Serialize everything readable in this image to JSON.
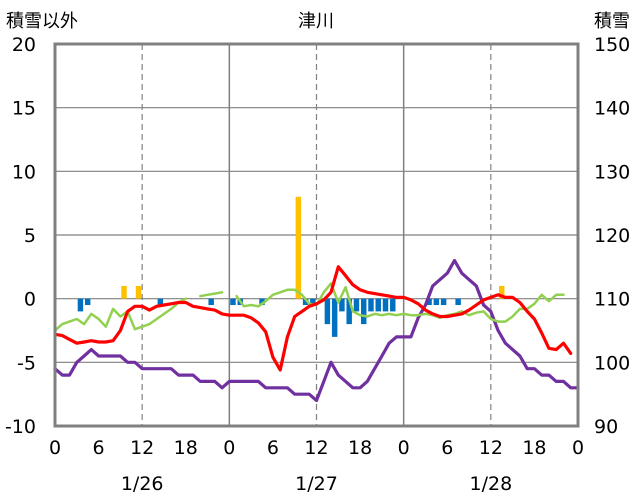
{
  "chart_data": {
    "type": "combo-bar-line",
    "title": "津川",
    "left_axis_label": "積雪以外",
    "right_axis_label": "積雪",
    "y_left": {
      "min": -10,
      "max": 20,
      "ticks": [
        20,
        15,
        10,
        5,
        0,
        -5,
        -10
      ]
    },
    "y_right": {
      "min": 90,
      "max": 150,
      "ticks": [
        150,
        140,
        130,
        120,
        110,
        100,
        90
      ]
    },
    "x": {
      "min": 0,
      "max": 72,
      "hour_ticks": [
        {
          "h": 0,
          "label": "0"
        },
        {
          "h": 6,
          "label": "6"
        },
        {
          "h": 12,
          "label": "12"
        },
        {
          "h": 18,
          "label": "18"
        },
        {
          "h": 24,
          "label": "0"
        },
        {
          "h": 30,
          "label": "6"
        },
        {
          "h": 36,
          "label": "12"
        },
        {
          "h": 42,
          "label": "18"
        },
        {
          "h": 48,
          "label": "0"
        },
        {
          "h": 54,
          "label": "6"
        },
        {
          "h": 60,
          "label": "12"
        },
        {
          "h": 66,
          "label": "18"
        },
        {
          "h": 72,
          "label": "0"
        }
      ],
      "date_labels": [
        {
          "h": 12,
          "label": "1/26"
        },
        {
          "h": 36,
          "label": "1/27"
        },
        {
          "h": 60,
          "label": "1/28"
        }
      ],
      "day_lines": [
        24,
        48
      ],
      "dashed_lines": [
        12,
        36,
        60
      ]
    },
    "colors": {
      "precipitation": "#FFC000",
      "snow_change": "#0070C0",
      "temperature": "#FF0000",
      "humidity_like": "#92D050",
      "snow_depth": "#7030A0",
      "frame": "#808080"
    },
    "series": [
      {
        "key": "precipitation",
        "axis": "left",
        "kind": "bar",
        "data": [
          [
            9,
            1
          ],
          [
            11,
            1
          ],
          [
            33,
            8
          ],
          [
            61,
            1
          ]
        ]
      },
      {
        "key": "snow_change",
        "axis": "left",
        "kind": "bar",
        "data": [
          [
            3,
            -1
          ],
          [
            4,
            -0.5
          ],
          [
            14,
            -0.5
          ],
          [
            21,
            -0.5
          ],
          [
            24,
            -0.5
          ],
          [
            25,
            -0.5
          ],
          [
            28,
            -0.5
          ],
          [
            34,
            -0.5
          ],
          [
            35,
            -0.5
          ],
          [
            37,
            -2
          ],
          [
            38,
            -3
          ],
          [
            39,
            -1
          ],
          [
            40,
            -2
          ],
          [
            41,
            -1
          ],
          [
            42,
            -2
          ],
          [
            43,
            -1
          ],
          [
            44,
            -1
          ],
          [
            45,
            -1
          ],
          [
            46,
            -1
          ],
          [
            51,
            -0.5
          ],
          [
            52,
            -0.5
          ],
          [
            53,
            -0.5
          ],
          [
            55,
            -0.5
          ]
        ]
      },
      {
        "key": "temperature",
        "axis": "left",
        "kind": "line",
        "data": [
          [
            0,
            -2.8
          ],
          [
            1,
            -2.9
          ],
          [
            2,
            -3.2
          ],
          [
            3,
            -3.5
          ],
          [
            4,
            -3.4
          ],
          [
            5,
            -3.3
          ],
          [
            6,
            -3.4
          ],
          [
            7,
            -3.4
          ],
          [
            8,
            -3.3
          ],
          [
            9,
            -2.5
          ],
          [
            10,
            -1
          ],
          [
            11,
            -0.6
          ],
          [
            12,
            -0.6
          ],
          [
            13,
            -0.9
          ],
          [
            14,
            -0.6
          ],
          [
            15,
            -0.5
          ],
          [
            16,
            -0.4
          ],
          [
            17,
            -0.3
          ],
          [
            18,
            -0.3
          ],
          [
            19,
            -0.6
          ],
          [
            20,
            -0.7
          ],
          [
            21,
            -0.8
          ],
          [
            22,
            -0.9
          ],
          [
            23,
            -1.2
          ],
          [
            24,
            -1.3
          ],
          [
            25,
            -1.3
          ],
          [
            26,
            -1.3
          ],
          [
            27,
            -1.5
          ],
          [
            28,
            -1.9
          ],
          [
            29,
            -2.6
          ],
          [
            30,
            -4.6
          ],
          [
            31,
            -5.6
          ],
          [
            32,
            -3
          ],
          [
            33,
            -1.4
          ],
          [
            34,
            -1
          ],
          [
            35,
            -0.6
          ],
          [
            36,
            -0.4
          ],
          [
            37,
            -0.1
          ],
          [
            38,
            0.5
          ],
          [
            39,
            2.5
          ],
          [
            40,
            1.8
          ],
          [
            41,
            1.1
          ],
          [
            42,
            0.7
          ],
          [
            43,
            0.5
          ],
          [
            44,
            0.4
          ],
          [
            45,
            0.3
          ],
          [
            46,
            0.2
          ],
          [
            47,
            0.1
          ],
          [
            48,
            0.1
          ],
          [
            49,
            -0.1
          ],
          [
            50,
            -0.4
          ],
          [
            51,
            -0.9
          ],
          [
            52,
            -1.2
          ],
          [
            53,
            -1.4
          ],
          [
            54,
            -1.4
          ],
          [
            55,
            -1.3
          ],
          [
            56,
            -1.2
          ],
          [
            57,
            -0.9
          ],
          [
            58,
            -0.5
          ],
          [
            59,
            -0.1
          ],
          [
            60,
            0.1
          ],
          [
            61,
            0.3
          ],
          [
            62,
            0.1
          ],
          [
            63,
            0.1
          ],
          [
            64,
            -0.3
          ],
          [
            65,
            -1
          ],
          [
            66,
            -1.6
          ],
          [
            67,
            -2.7
          ],
          [
            68,
            -3.9
          ],
          [
            69,
            -4
          ],
          [
            70,
            -3.5
          ],
          [
            71,
            -4.3
          ]
        ]
      },
      {
        "key": "humidity_like",
        "axis": "left",
        "kind": "line",
        "data": [
          [
            0,
            -2.5
          ],
          [
            1,
            -2
          ],
          [
            2,
            -1.8
          ],
          [
            3,
            -1.6
          ],
          [
            4,
            -2
          ],
          [
            5,
            -1.2
          ],
          [
            6,
            -1.6
          ],
          [
            7,
            -2.2
          ],
          [
            8,
            -0.8
          ],
          [
            9,
            -1.4
          ],
          [
            10,
            -1
          ],
          [
            11,
            -2.4
          ],
          [
            12,
            -2.2
          ],
          [
            13,
            -2
          ],
          [
            14,
            -1.6
          ],
          [
            15,
            -1.2
          ],
          [
            16,
            -0.8
          ],
          [
            17,
            -0.3
          ],
          [
            18,
            0
          ],
          [
            19,
            null
          ],
          [
            20,
            0.2
          ],
          [
            21,
            0.3
          ],
          [
            22,
            0.4
          ],
          [
            23,
            0.5
          ],
          [
            24,
            null
          ],
          [
            25,
            0.2
          ],
          [
            26,
            -0.6
          ],
          [
            27,
            -0.5
          ],
          [
            28,
            -0.6
          ],
          [
            29,
            -0.2
          ],
          [
            30,
            0.3
          ],
          [
            31,
            0.5
          ],
          [
            32,
            0.7
          ],
          [
            33,
            0.7
          ],
          [
            34,
            0.3
          ],
          [
            35,
            -0.4
          ],
          [
            36,
            -0.5
          ],
          [
            37,
            0.5
          ],
          [
            38,
            1.2
          ],
          [
            39,
            -0.3
          ],
          [
            40,
            0.9
          ],
          [
            41,
            -1
          ],
          [
            42,
            -1.3
          ],
          [
            43,
            -1.4
          ],
          [
            44,
            -1.2
          ],
          [
            45,
            -1.3
          ],
          [
            46,
            -1.2
          ],
          [
            47,
            -1.3
          ],
          [
            48,
            -1.2
          ],
          [
            49,
            -1.3
          ],
          [
            50,
            -1.3
          ],
          [
            51,
            -1.2
          ],
          [
            52,
            -1.3
          ],
          [
            53,
            -1.5
          ],
          [
            54,
            -1.3
          ],
          [
            55,
            -1.2
          ],
          [
            56,
            -1
          ],
          [
            57,
            -1.3
          ],
          [
            58,
            -1.1
          ],
          [
            59,
            -1
          ],
          [
            60,
            -1.6
          ],
          [
            61,
            -1.8
          ],
          [
            62,
            -1.8
          ],
          [
            63,
            -1.4
          ],
          [
            64,
            -0.8
          ],
          [
            65,
            -0.8
          ],
          [
            66,
            -0.4
          ],
          [
            67,
            0.3
          ],
          [
            68,
            -0.2
          ],
          [
            69,
            0.3
          ],
          [
            70,
            0.3
          ]
        ]
      },
      {
        "key": "snow_depth",
        "axis": "right",
        "kind": "line",
        "data": [
          [
            0,
            99
          ],
          [
            1,
            98
          ],
          [
            2,
            98
          ],
          [
            3,
            100
          ],
          [
            4,
            101
          ],
          [
            5,
            102
          ],
          [
            6,
            101
          ],
          [
            7,
            101
          ],
          [
            8,
            101
          ],
          [
            9,
            101
          ],
          [
            10,
            100
          ],
          [
            11,
            100
          ],
          [
            12,
            99
          ],
          [
            13,
            99
          ],
          [
            14,
            99
          ],
          [
            15,
            99
          ],
          [
            16,
            99
          ],
          [
            17,
            98
          ],
          [
            18,
            98
          ],
          [
            19,
            98
          ],
          [
            20,
            97
          ],
          [
            21,
            97
          ],
          [
            22,
            97
          ],
          [
            23,
            96
          ],
          [
            24,
            97
          ],
          [
            25,
            97
          ],
          [
            26,
            97
          ],
          [
            27,
            97
          ],
          [
            28,
            97
          ],
          [
            29,
            96
          ],
          [
            30,
            96
          ],
          [
            31,
            96
          ],
          [
            32,
            96
          ],
          [
            33,
            95
          ],
          [
            34,
            95
          ],
          [
            35,
            95
          ],
          [
            36,
            94
          ],
          [
            37,
            97
          ],
          [
            38,
            100
          ],
          [
            39,
            98
          ],
          [
            40,
            97
          ],
          [
            41,
            96
          ],
          [
            42,
            96
          ],
          [
            43,
            97
          ],
          [
            44,
            99
          ],
          [
            45,
            101
          ],
          [
            46,
            103
          ],
          [
            47,
            104
          ],
          [
            48,
            104
          ],
          [
            49,
            104
          ],
          [
            50,
            107
          ],
          [
            51,
            109
          ],
          [
            52,
            112
          ],
          [
            53,
            113
          ],
          [
            54,
            114
          ],
          [
            55,
            116
          ],
          [
            56,
            114
          ],
          [
            57,
            113
          ],
          [
            58,
            112
          ],
          [
            59,
            109
          ],
          [
            60,
            108
          ],
          [
            61,
            105
          ],
          [
            62,
            103
          ],
          [
            63,
            102
          ],
          [
            64,
            101
          ],
          [
            65,
            99
          ],
          [
            66,
            99
          ],
          [
            67,
            98
          ],
          [
            68,
            98
          ],
          [
            69,
            97
          ],
          [
            70,
            97
          ],
          [
            71,
            96
          ],
          [
            72,
            96
          ]
        ]
      }
    ]
  }
}
